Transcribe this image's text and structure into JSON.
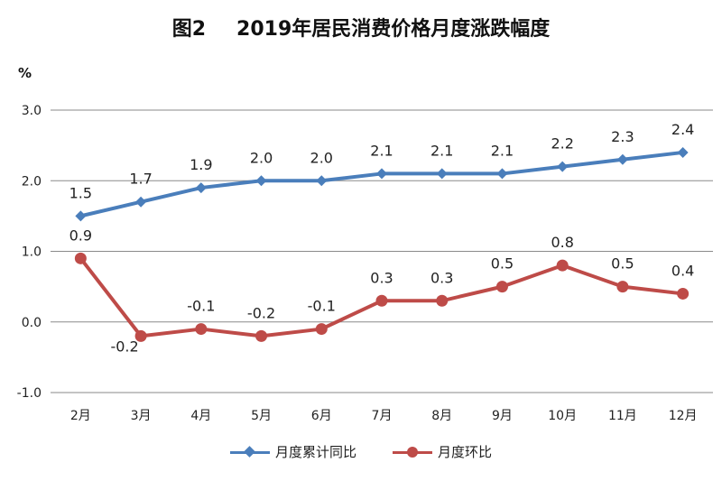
{
  "chart_data": {
    "type": "line",
    "title_prefix": "图2",
    "title": "2019年居民消费价格月度涨跌幅度",
    "ylabel": "%",
    "ylim": [
      -1.0,
      3.0
    ],
    "yticks": [
      "3.0",
      "2.0",
      "1.0",
      "0.0",
      "-1.0"
    ],
    "ytick_values": [
      3.0,
      2.0,
      1.0,
      0.0,
      -1.0
    ],
    "categories": [
      "2月",
      "3月",
      "4月",
      "5月",
      "6月",
      "7月",
      "8月",
      "9月",
      "10月",
      "11月",
      "12月"
    ],
    "series": [
      {
        "name": "月度累计同比",
        "color": "#4A7EBB",
        "marker": "diamond",
        "values": [
          1.5,
          1.7,
          1.9,
          2.0,
          2.0,
          2.1,
          2.1,
          2.1,
          2.2,
          2.3,
          2.4
        ],
        "labels": [
          "1.5",
          "1.7",
          "1.9",
          "2.0",
          "2.0",
          "2.1",
          "2.1",
          "2.1",
          "2.2",
          "2.3",
          "2.4"
        ]
      },
      {
        "name": "月度环比",
        "color": "#BE4B48",
        "marker": "circle",
        "values": [
          0.9,
          -0.2,
          -0.1,
          -0.2,
          -0.1,
          0.3,
          0.3,
          0.5,
          0.8,
          0.5,
          0.4
        ],
        "labels": [
          "0.9",
          "-0.2",
          "-0.1",
          "-0.2",
          "-0.1",
          "0.3",
          "0.3",
          "0.5",
          "0.8",
          "0.5",
          "0.4"
        ]
      }
    ],
    "legend_position": "bottom",
    "grid": true
  }
}
